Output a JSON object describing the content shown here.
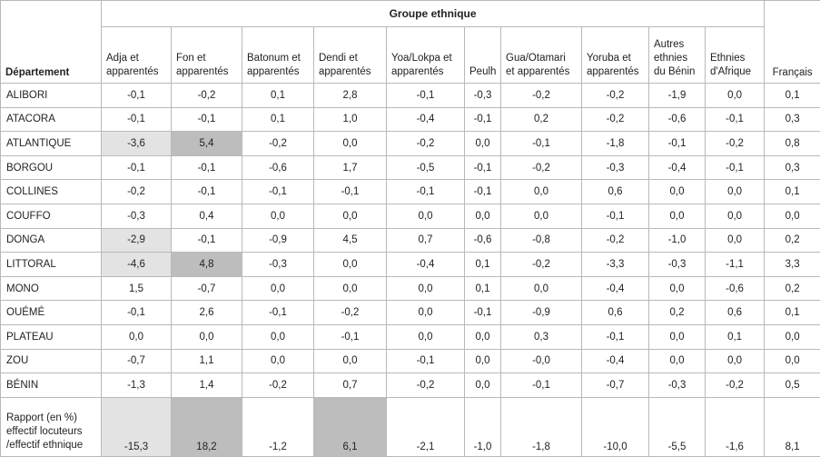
{
  "header": {
    "group_title": "Groupe ethnique",
    "departement_label": "Département",
    "francais_label": "Français",
    "columns": [
      "Adja et apparentés",
      "Fon et apparentés",
      "Batonum et apparentés",
      "Dendi et apparentés",
      "Yoa/Lokpa et apparentés",
      "Peulh",
      "Gua/Otamari et apparentés",
      "Yoruba et apparentés",
      "Autres ethnies du Bénin",
      "Ethnies d'Afrique"
    ]
  },
  "rows": [
    {
      "dept": "ALIBORI",
      "values": [
        "-0,1",
        "-0,2",
        "0,1",
        "2,8",
        "-0,1",
        "-0,3",
        "-0,2",
        "-0,2",
        "-1,9",
        "0,0",
        "0,1"
      ]
    },
    {
      "dept": "ATACORA",
      "values": [
        "-0,1",
        "-0,1",
        "0,1",
        "1,0",
        "-0,4",
        "-0,1",
        "0,2",
        "-0,2",
        "-0,6",
        "-0,1",
        "0,3"
      ]
    },
    {
      "dept": "ATLANTIQUE",
      "values": [
        "-3,6",
        "5,4",
        "-0,2",
        "0,0",
        "-0,2",
        "0,0",
        "-0,1",
        "-1,8",
        "-0,1",
        "-0,2",
        "0,8"
      ]
    },
    {
      "dept": "BORGOU",
      "values": [
        "-0,1",
        "-0,1",
        "-0,6",
        "1,7",
        "-0,5",
        "-0,1",
        "-0,2",
        "-0,3",
        "-0,4",
        "-0,1",
        "0,3"
      ]
    },
    {
      "dept": "COLLINES",
      "values": [
        "-0,2",
        "-0,1",
        "-0,1",
        "-0,1",
        "-0,1",
        "-0,1",
        "0,0",
        "0,6",
        "0,0",
        "0,0",
        "0,1"
      ]
    },
    {
      "dept": "COUFFO",
      "values": [
        "-0,3",
        "0,4",
        "0,0",
        "0,0",
        "0,0",
        "0,0",
        "0,0",
        "-0,1",
        "0,0",
        "0,0",
        "0,0"
      ]
    },
    {
      "dept": "DONGA",
      "values": [
        "-2,9",
        "-0,1",
        "-0,9",
        "4,5",
        "0,7",
        "-0,6",
        "-0,8",
        "-0,2",
        "-1,0",
        "0,0",
        "0,2"
      ]
    },
    {
      "dept": "LITTORAL",
      "values": [
        "-4,6",
        "4,8",
        "-0,3",
        "0,0",
        "-0,4",
        "0,1",
        "-0,2",
        "-3,3",
        "-0,3",
        "-1,1",
        "3,3"
      ]
    },
    {
      "dept": "MONO",
      "values": [
        "1,5",
        "-0,7",
        "0,0",
        "0,0",
        "0,0",
        "0,1",
        "0,0",
        "-0,4",
        "0,0",
        "-0,6",
        "0,2"
      ]
    },
    {
      "dept": "OUÉMÉ",
      "values": [
        "-0,1",
        "2,6",
        "-0,1",
        "-0,2",
        "0,0",
        "-0,1",
        "-0,9",
        "0,6",
        "0,2",
        "0,6",
        "0,1"
      ]
    },
    {
      "dept": "PLATEAU",
      "values": [
        "0,0",
        "0,0",
        "0,0",
        "-0,1",
        "0,0",
        "0,0",
        "0,3",
        "-0,1",
        "0,0",
        "0,1",
        "0,0"
      ]
    },
    {
      "dept": "ZOU",
      "values": [
        "-0,7",
        "1,1",
        "0,0",
        "0,0",
        "-0,1",
        "0,0",
        "-0,0",
        "-0,4",
        "0,0",
        "0,0",
        "0,0"
      ]
    },
    {
      "dept": "BÉNIN",
      "values": [
        "-1,3",
        "1,4",
        "-0,2",
        "0,7",
        "-0,2",
        "0,0",
        "-0,1",
        "-0,7",
        "-0,3",
        "-0,2",
        "0,5"
      ]
    }
  ],
  "rapport": {
    "label": "Rapport (en %) effectif locuteurs /effectif ethnique",
    "values": [
      "-15,3",
      "18,2",
      "-1,2",
      "6,1",
      "-2,1",
      "-1,0",
      "-1,8",
      "-10,0",
      "-5,5",
      "-1,6",
      "8,1"
    ]
  },
  "highlights": {
    "light_color": "#e3e3e3",
    "dark_color": "#bdbdbd",
    "light_cells": [
      [
        2,
        0
      ],
      [
        6,
        0
      ],
      [
        7,
        0
      ],
      [
        "rapport",
        0
      ]
    ],
    "dark_cells": [
      [
        2,
        1
      ],
      [
        7,
        1
      ],
      [
        "rapport",
        1
      ],
      [
        "rapport",
        3
      ]
    ]
  }
}
